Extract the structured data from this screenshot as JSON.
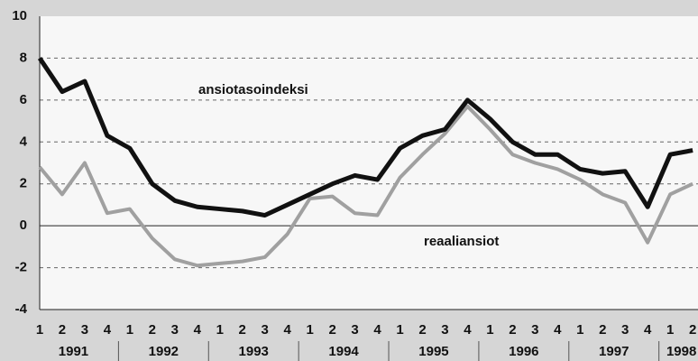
{
  "chart_data": {
    "type": "line",
    "categories": [
      "1",
      "2",
      "3",
      "4",
      "1",
      "2",
      "3",
      "4",
      "1",
      "2",
      "3",
      "4",
      "1",
      "2",
      "3",
      "4",
      "1",
      "2",
      "3",
      "4",
      "1",
      "2",
      "3",
      "4",
      "1",
      "2",
      "3",
      "4",
      "1",
      "2"
    ],
    "groups": [
      "1991",
      "1992",
      "1993",
      "1994",
      "1995",
      "1996",
      "1997",
      "1998"
    ],
    "series": [
      {
        "name": "ansiotasoindeksi",
        "color": "#111111",
        "values": [
          8.0,
          6.4,
          6.9,
          4.3,
          3.7,
          2.0,
          1.2,
          0.9,
          0.8,
          0.7,
          0.5,
          1.0,
          1.5,
          2.0,
          2.4,
          2.2,
          3.7,
          4.3,
          4.6,
          6.0,
          5.1,
          4.0,
          3.4,
          3.4,
          2.7,
          2.5,
          2.6,
          0.9,
          3.4,
          3.6
        ]
      },
      {
        "name": "reaaliansiot",
        "color": "#a0a0a0",
        "values": [
          2.8,
          1.5,
          3.0,
          0.6,
          0.8,
          -0.6,
          -1.6,
          -1.9,
          -1.8,
          -1.7,
          -1.5,
          -0.4,
          1.3,
          1.4,
          0.6,
          0.5,
          2.3,
          3.4,
          4.4,
          5.7,
          4.6,
          3.4,
          3.0,
          2.7,
          2.2,
          1.5,
          1.1,
          -0.8,
          1.5,
          2.0
        ]
      }
    ],
    "ylim": [
      -4,
      10
    ],
    "yticks": [
      -4,
      -2,
      0,
      2,
      4,
      6,
      8,
      10
    ],
    "grid": true
  }
}
